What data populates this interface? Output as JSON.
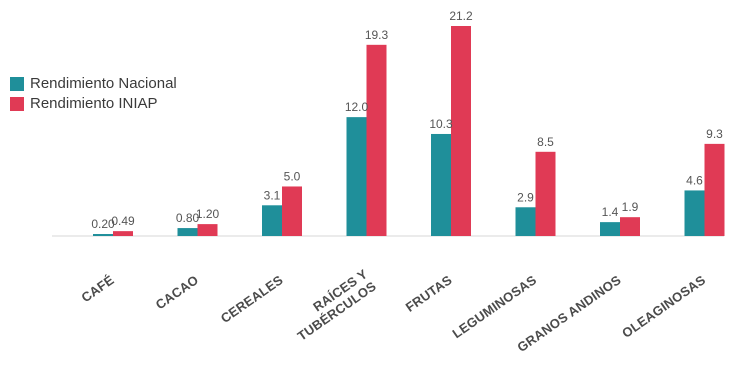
{
  "chart_data": {
    "type": "bar",
    "title": "",
    "xlabel": "",
    "ylabel": "",
    "legend_position": "top-left",
    "categories": [
      [
        "CAFÉ"
      ],
      [
        "CACAO"
      ],
      [
        "CEREALES"
      ],
      [
        "RAÍCES Y",
        "TUBÉRCULOS"
      ],
      [
        "FRUTAS"
      ],
      [
        "LEGUMINOSAS"
      ],
      [
        "GRANOS ANDINOS"
      ],
      [
        "OLEAGINOSAS"
      ]
    ],
    "series": [
      {
        "name": "Rendimiento Nacional",
        "color": "#1f8f9a",
        "values": [
          0.2,
          0.8,
          3.1,
          12.0,
          10.3,
          2.9,
          1.4,
          4.6
        ],
        "labels": [
          "0.20",
          "0.80",
          "3.1",
          "12.0",
          "10.3",
          "2.9",
          "1.4",
          "4.6"
        ]
      },
      {
        "name": "Rendimiento INIAP",
        "color": "#e03a55",
        "values": [
          0.49,
          1.2,
          5.0,
          19.3,
          21.2,
          8.5,
          1.9,
          9.3
        ],
        "labels": [
          "0.49",
          "1.20",
          "5.0",
          "19.3",
          "21.2",
          "8.5",
          "1.9",
          "9.3"
        ]
      }
    ],
    "ylim": [
      0,
      21.2
    ],
    "grid": false
  }
}
